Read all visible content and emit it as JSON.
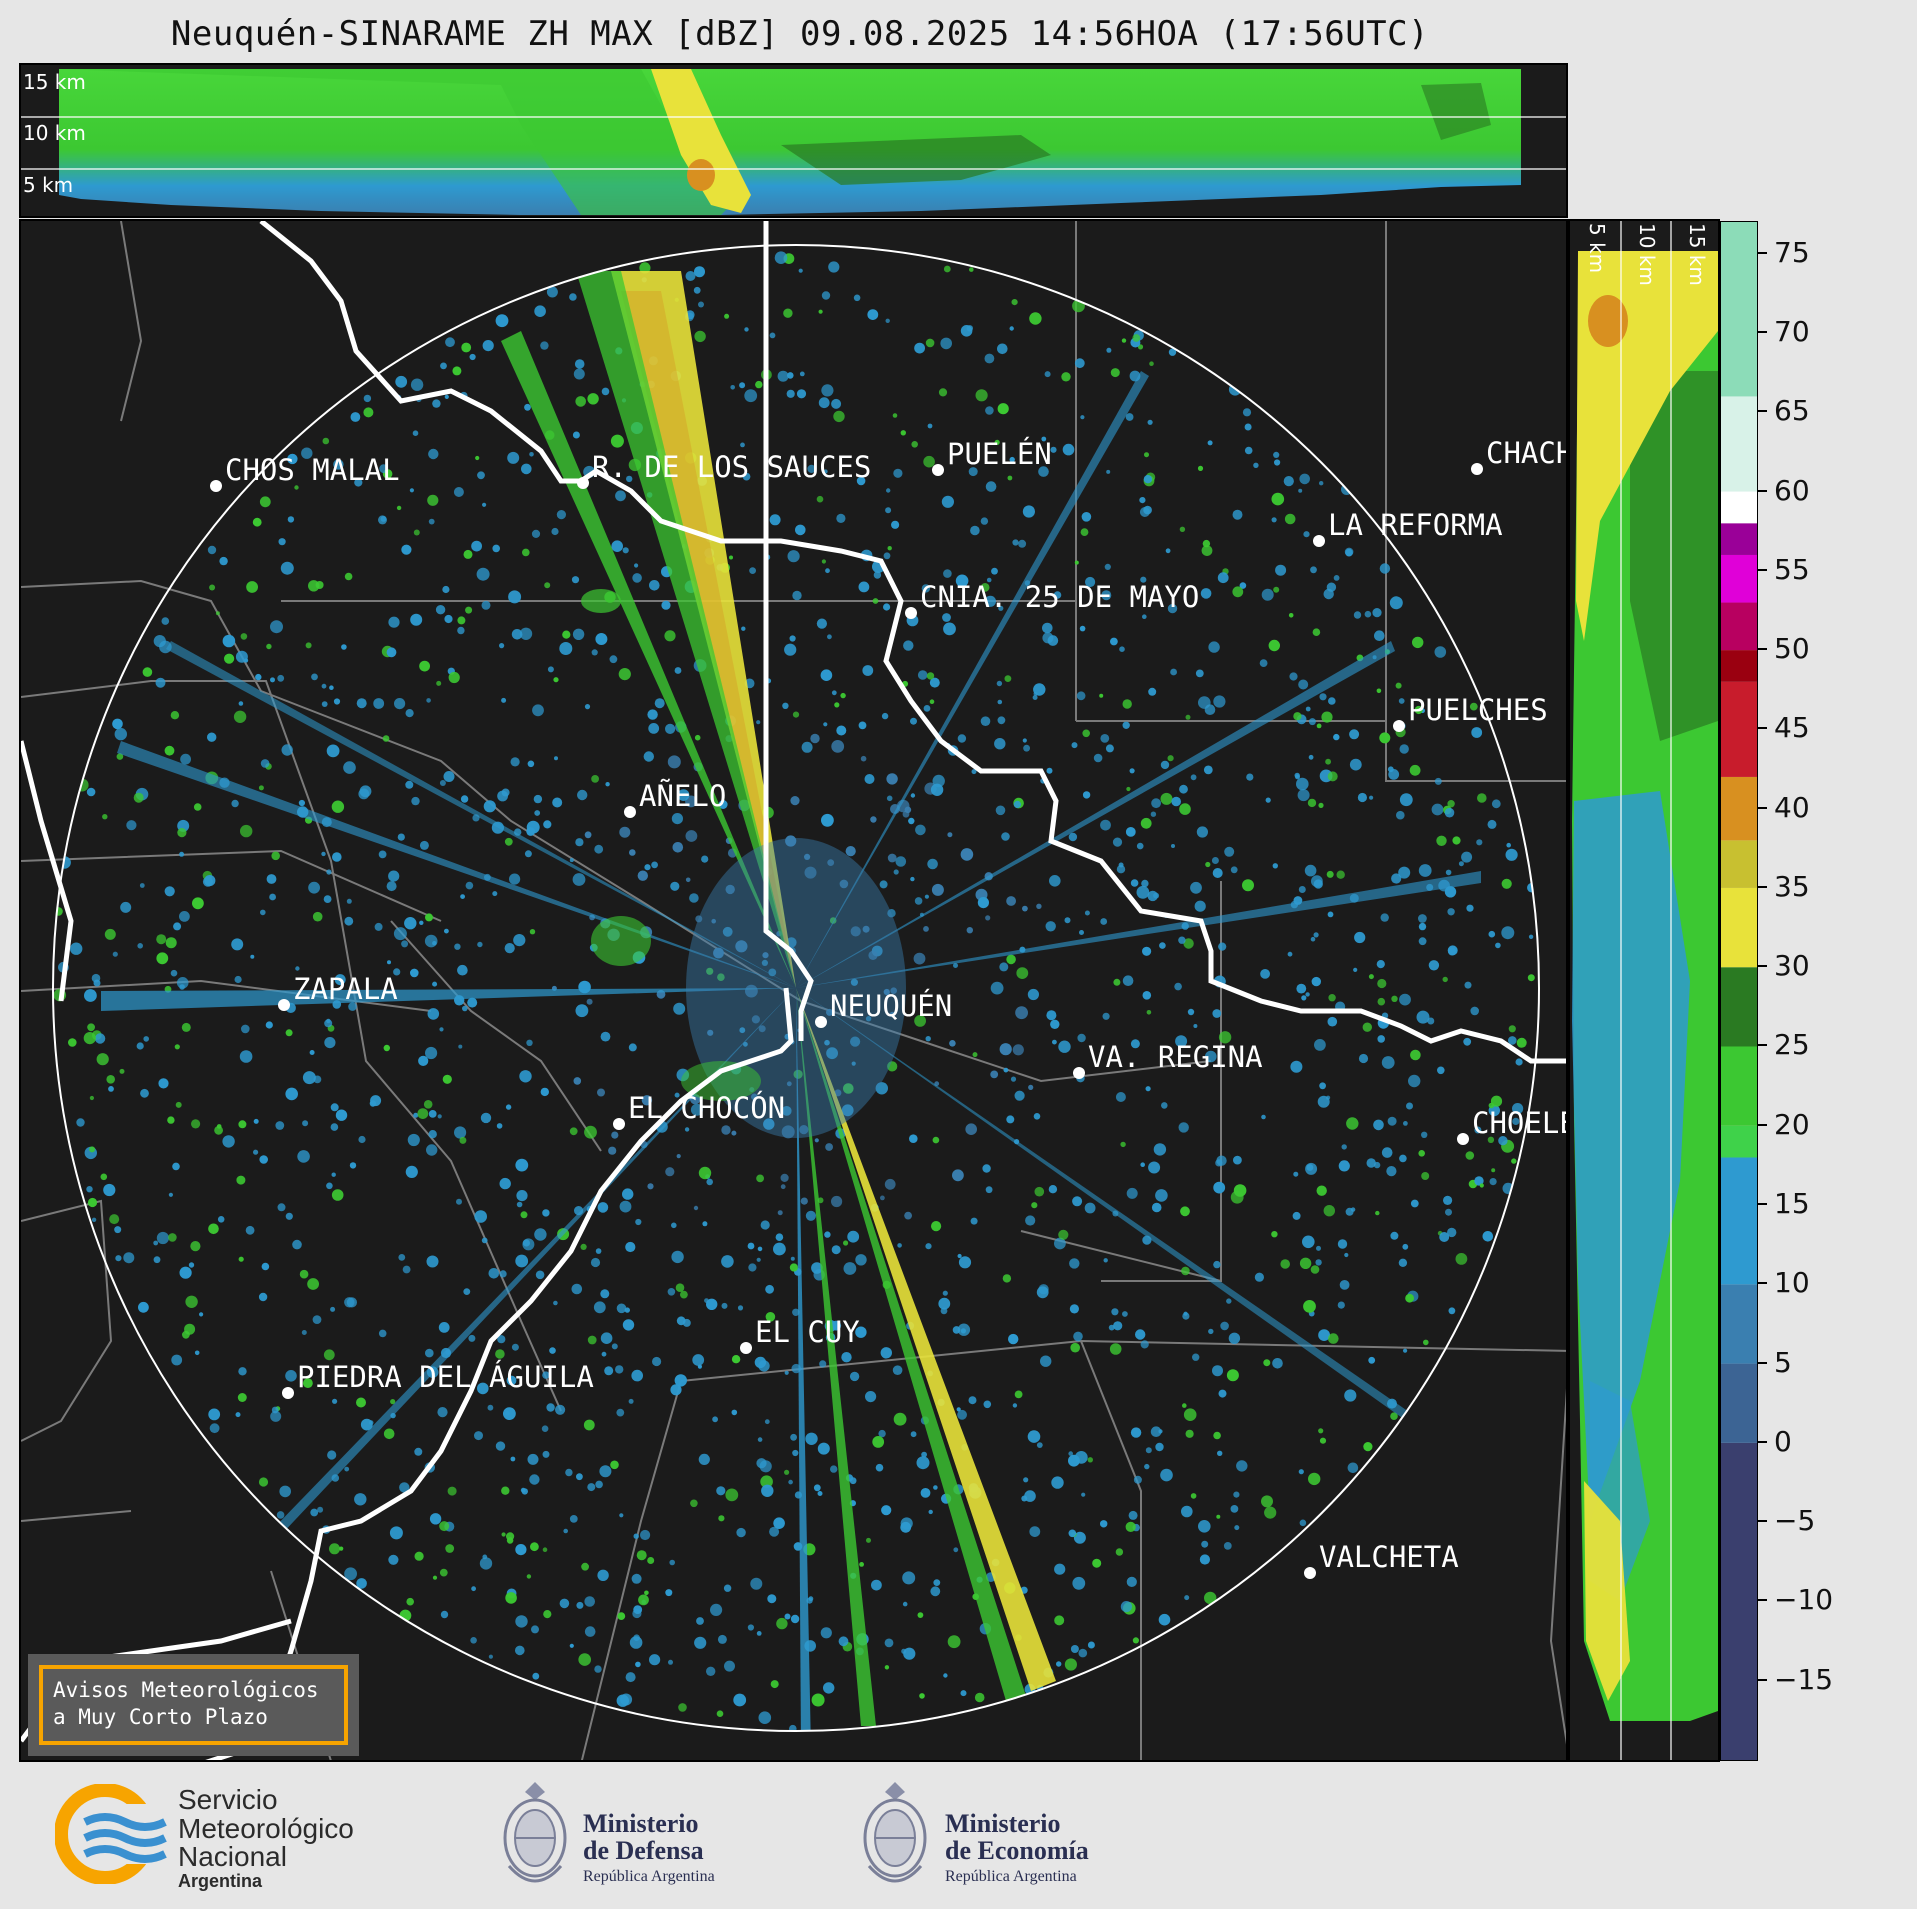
{
  "title": "Neuquén-SINARAME ZH MAX [dBZ] 09.08.2025 14:56HOA (17:56UTC)",
  "top_panel": {
    "height_labels": [
      "15 km",
      "10 km",
      "5 km"
    ]
  },
  "right_panel": {
    "height_labels": [
      "5 km",
      "10 km",
      "15 km"
    ]
  },
  "colorbar": {
    "unit": "dBZ",
    "tick_labels": [
      "75",
      "70",
      "65",
      "60",
      "55",
      "50",
      "45",
      "40",
      "35",
      "30",
      "25",
      "20",
      "15",
      "10",
      "5",
      "0",
      "−5",
      "−10",
      "−15"
    ],
    "range": [
      -20,
      77
    ],
    "colors": [
      {
        "from": -20,
        "to": 0,
        "color": "#3a3f6e"
      },
      {
        "from": 0,
        "to": 5,
        "color": "#3c6494"
      },
      {
        "from": 5,
        "to": 10,
        "color": "#3a7fb0"
      },
      {
        "from": 10,
        "to": 18,
        "color": "#2e9ad0"
      },
      {
        "from": 18,
        "to": 20,
        "color": "#3fd24a"
      },
      {
        "from": 20,
        "to": 25,
        "color": "#3cc832"
      },
      {
        "from": 25,
        "to": 30,
        "color": "#2a7a22"
      },
      {
        "from": 30,
        "to": 35,
        "color": "#e8e23a"
      },
      {
        "from": 35,
        "to": 38,
        "color": "#c8c030"
      },
      {
        "from": 38,
        "to": 42,
        "color": "#d89020"
      },
      {
        "from": 42,
        "to": 48,
        "color": "#c81c2c"
      },
      {
        "from": 48,
        "to": 50,
        "color": "#9a0010"
      },
      {
        "from": 50,
        "to": 53,
        "color": "#b80060"
      },
      {
        "from": 53,
        "to": 56,
        "color": "#e000d8"
      },
      {
        "from": 56,
        "to": 58,
        "color": "#9a0098"
      },
      {
        "from": 58,
        "to": 60,
        "color": "#ffffff"
      },
      {
        "from": 60,
        "to": 66,
        "color": "#d8f2e8"
      },
      {
        "from": 66,
        "to": 77,
        "color": "#8cdcb8"
      }
    ]
  },
  "cities": [
    {
      "name": "CHOS MALAL"
    },
    {
      "name": "R. DE LOS SAUCES"
    },
    {
      "name": "PUELÉN"
    },
    {
      "name": "CHACH"
    },
    {
      "name": "LA REFORMA"
    },
    {
      "name": "CNIA. 25 DE MAYO"
    },
    {
      "name": "PUELCHES"
    },
    {
      "name": "AÑELO"
    },
    {
      "name": "ZAPALA"
    },
    {
      "name": "NEUQUÉN"
    },
    {
      "name": "VA. REGINA"
    },
    {
      "name": "EL CHOCÓN"
    },
    {
      "name": "CHOELE"
    },
    {
      "name": "EL CUY"
    },
    {
      "name": "PIEDRA DEL ÁGUILA"
    },
    {
      "name": "VALCHETA"
    }
  ],
  "notice": {
    "line1": "Avisos Meteorológicos",
    "line2": "a Muy Corto Plazo"
  },
  "footer": {
    "smn": {
      "line1": "Servicio",
      "line2": "Meteorológico",
      "line3": "Nacional",
      "line4": "Argentina"
    },
    "defensa": {
      "line1": "Ministerio",
      "line2": "de Defensa",
      "sub": "República Argentina"
    },
    "economia": {
      "line1": "Ministerio",
      "line2": "de Economía",
      "sub": "República Argentina"
    }
  }
}
